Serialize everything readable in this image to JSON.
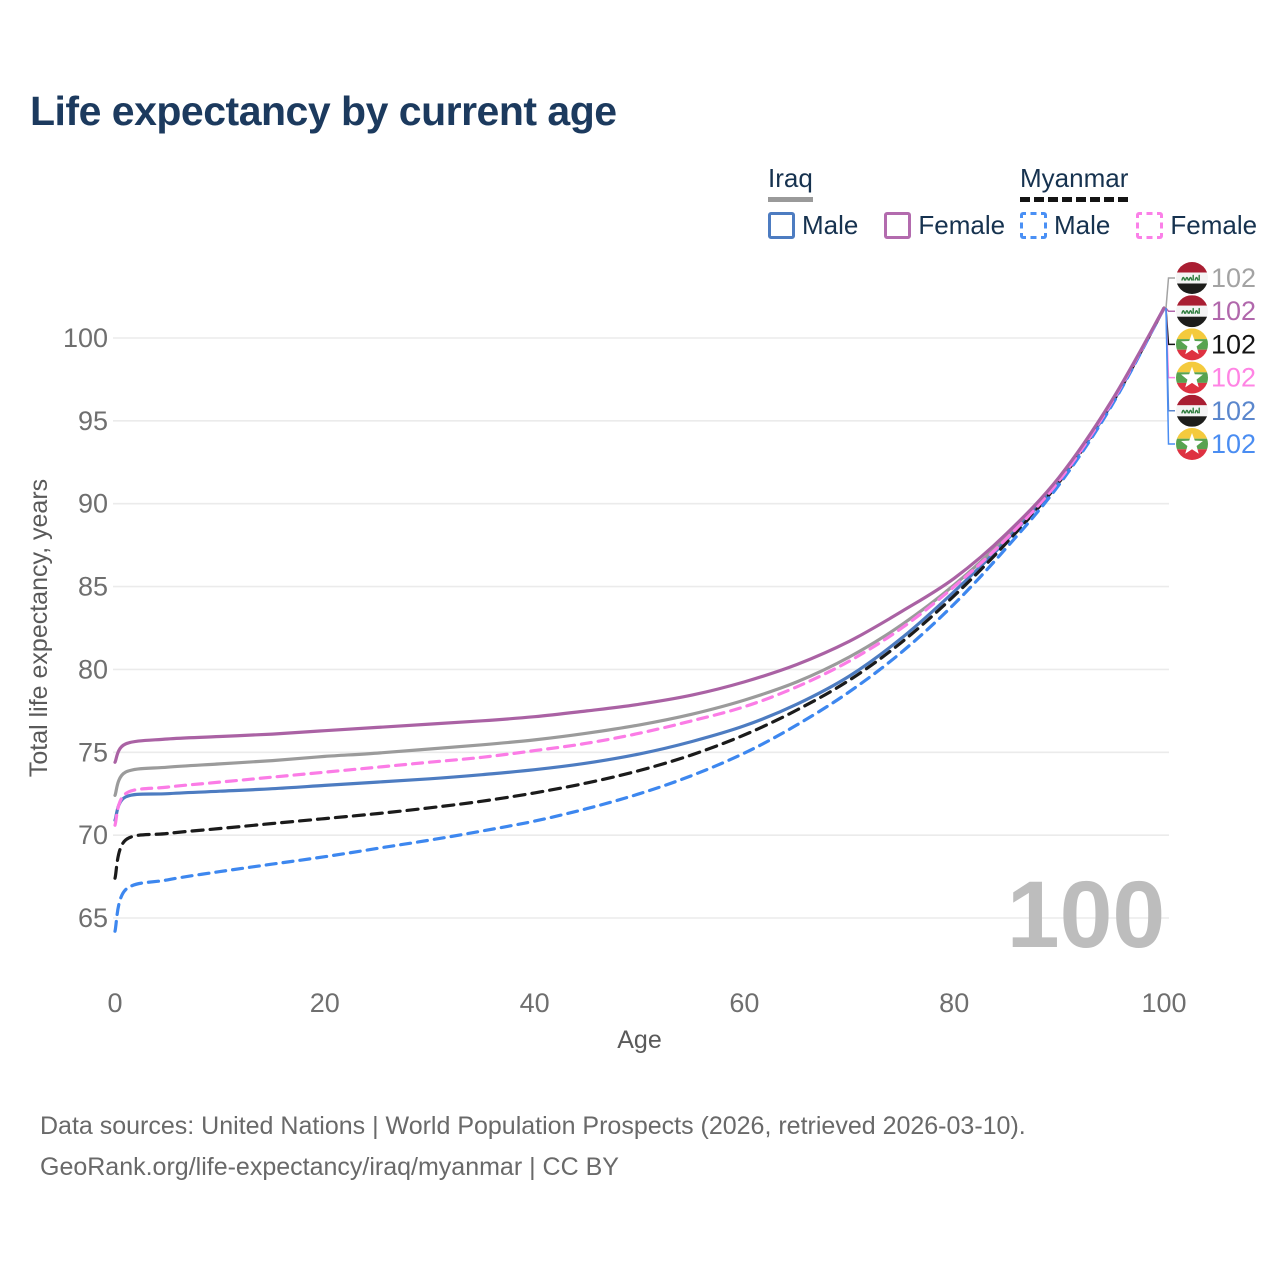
{
  "title": "Life expectancy by current age",
  "watermark_age": "100",
  "legend": {
    "groups": [
      {
        "label": "Iraq",
        "line_style": "solid",
        "underline_color": "#9a9a9a",
        "items": [
          {
            "label": "Male",
            "color": "#4d7cc1",
            "dashed": false
          },
          {
            "label": "Female",
            "color": "#b36bae",
            "dashed": false
          }
        ]
      },
      {
        "label": "Myanmar",
        "line_style": "dashed",
        "underline_color": "#141414",
        "items": [
          {
            "label": "Male",
            "color": "#4a90f5",
            "dashed": true
          },
          {
            "label": "Female",
            "color": "#fb80e8",
            "dashed": true
          }
        ]
      }
    ]
  },
  "chart_data": {
    "type": "line",
    "title": "Life expectancy by current age",
    "xlabel": "Age",
    "ylabel": "Total life expectancy, years",
    "xticks": [
      0,
      20,
      40,
      60,
      80,
      100
    ],
    "yticks": [
      65,
      70,
      75,
      80,
      85,
      90,
      95,
      100
    ],
    "xlim": [
      0,
      100
    ],
    "ylim": [
      63,
      103
    ],
    "grid": "horizontal",
    "legend_position": "top-right",
    "ages": [
      0,
      1,
      5,
      10,
      15,
      20,
      25,
      30,
      35,
      40,
      45,
      50,
      55,
      60,
      65,
      70,
      75,
      80,
      85,
      90,
      95,
      100
    ],
    "series": [
      {
        "key": "iraq_all",
        "name": "Iraq",
        "country": "Iraq",
        "sex": "All",
        "color": "#9b9b9b",
        "dash": null,
        "values": [
          72.4,
          73.8,
          74.1,
          74.3,
          74.5,
          74.75,
          74.95,
          75.2,
          75.45,
          75.75,
          76.15,
          76.65,
          77.3,
          78.15,
          79.25,
          80.75,
          82.7,
          85.1,
          88.0,
          91.5,
          96.1,
          101.8
        ]
      },
      {
        "key": "iraq_male",
        "name": "Iraq Male",
        "country": "Iraq",
        "sex": "Male",
        "color": "#4d7cc1",
        "dash": null,
        "values": [
          70.9,
          72.3,
          72.5,
          72.65,
          72.8,
          73.0,
          73.2,
          73.4,
          73.65,
          73.95,
          74.35,
          74.9,
          75.65,
          76.6,
          77.9,
          79.6,
          81.9,
          84.7,
          87.8,
          91.4,
          96.0,
          101.8
        ]
      },
      {
        "key": "myanmar_all",
        "name": "Myanmar",
        "country": "Myanmar",
        "sex": "All",
        "color": "#1b1b1b",
        "dash": "11 7",
        "values": [
          67.4,
          69.7,
          70.1,
          70.4,
          70.7,
          71.0,
          71.3,
          71.65,
          72.05,
          72.55,
          73.15,
          73.9,
          74.85,
          76.05,
          77.55,
          79.35,
          81.65,
          84.45,
          87.65,
          91.3,
          96.0,
          101.8
        ]
      },
      {
        "key": "myanmar_male",
        "name": "Myanmar Male",
        "country": "Myanmar",
        "sex": "Male",
        "color": "#3d87ef",
        "dash": "10 7",
        "values": [
          64.2,
          66.7,
          67.3,
          67.8,
          68.25,
          68.7,
          69.2,
          69.7,
          70.25,
          70.85,
          71.6,
          72.5,
          73.6,
          74.95,
          76.65,
          78.65,
          81.05,
          83.95,
          87.35,
          91.15,
          95.9,
          101.8
        ]
      },
      {
        "key": "myanmar_female",
        "name": "Myanmar Female",
        "country": "Myanmar",
        "sex": "Female",
        "color": "#fb7ce6",
        "dash": "10 7",
        "values": [
          70.6,
          72.5,
          72.9,
          73.2,
          73.5,
          73.8,
          74.1,
          74.4,
          74.7,
          75.1,
          75.55,
          76.15,
          76.9,
          77.75,
          78.95,
          80.5,
          82.5,
          85.0,
          87.9,
          91.4,
          96.1,
          101.8
        ]
      },
      {
        "key": "iraq_female",
        "name": "Iraq Female",
        "country": "Iraq",
        "sex": "Female",
        "color": "#aa62a4",
        "dash": null,
        "values": [
          74.4,
          75.5,
          75.8,
          75.95,
          76.1,
          76.3,
          76.5,
          76.7,
          76.9,
          77.15,
          77.5,
          77.9,
          78.45,
          79.25,
          80.3,
          81.7,
          83.5,
          85.5,
          88.2,
          91.6,
          96.2,
          101.8
        ]
      }
    ],
    "right_labels": [
      {
        "series": "iraq_all",
        "flag": "iraq",
        "value": "102",
        "color": "#a3a3a3"
      },
      {
        "series": "iraq_female",
        "flag": "iraq",
        "value": "102",
        "color": "#b168ac"
      },
      {
        "series": "myanmar_all",
        "flag": "myanmar",
        "value": "102",
        "color": "#141414"
      },
      {
        "series": "myanmar_female",
        "flag": "myanmar",
        "value": "102",
        "color": "#ff84e4"
      },
      {
        "series": "iraq_male",
        "flag": "iraq",
        "value": "102",
        "color": "#5b87cd"
      },
      {
        "series": "myanmar_male",
        "flag": "myanmar",
        "value": "102",
        "color": "#4a8df2"
      }
    ],
    "flag_colors": {
      "iraq": {
        "red": "#a91e32",
        "white": "#f4f4f4",
        "black": "#1d1d1b",
        "script_green": "#2e7d3e"
      },
      "myanmar": {
        "yellow": "#f4ca3d",
        "green": "#58a350",
        "red": "#de3241",
        "star": "#ffffff"
      }
    }
  },
  "colors": {
    "title": "#1c3a5e",
    "legend_text": "#16324f",
    "grid": "#ebebeb",
    "tick_label": "#6f6f6f",
    "axis_title": "#5a5a5a",
    "watermark": "#bdbdbd",
    "footer": "#696969"
  },
  "footer": {
    "line1": "Data sources: United Nations | World Population Prospects (2026, retrieved 2026-03-10).",
    "line2": "GeoRank.org/life-expectancy/iraq/myanmar | CC BY"
  }
}
